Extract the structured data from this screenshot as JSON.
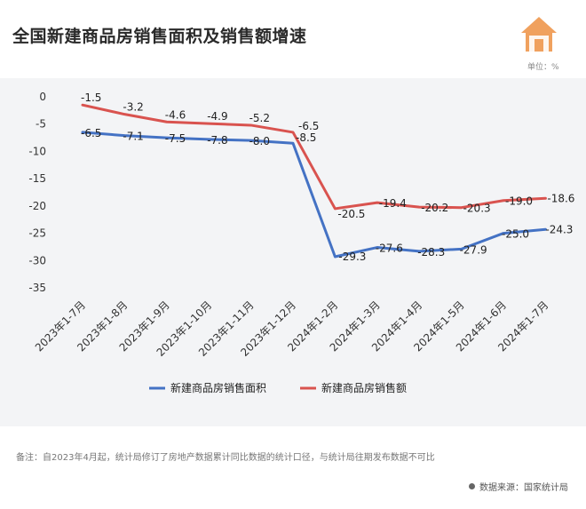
{
  "title": "全国新建商品房销售面积及销售额增速",
  "unit": "单位：%",
  "house_icon": "house-icon",
  "colors": {
    "area": "#4472c4",
    "sales": "#d9534f",
    "icon": "#f0a15e"
  },
  "note_label": "备注：",
  "note_text": "自2023年4月起，统计局修订了房地产数据累计同比数据的统计口径，与统计局往期发布数据不可比",
  "source": "数据来源：国家统计局",
  "chart_data": {
    "type": "line",
    "categories": [
      "2023年1-7月",
      "2023年1-8月",
      "2023年1-9月",
      "2023年1-10月",
      "2023年1-11月",
      "2023年1-12月",
      "2024年1-2月",
      "2024年1-3月",
      "2024年1-4月",
      "2024年1-5月",
      "2024年1-6月",
      "2024年1-7月"
    ],
    "series": [
      {
        "name": "新建商品房销售面积",
        "color": "#4472c4",
        "values": [
          -6.5,
          -7.1,
          -7.5,
          -7.8,
          -8.0,
          -8.5,
          -29.3,
          -27.6,
          -28.3,
          -27.9,
          -25.0,
          -24.3
        ]
      },
      {
        "name": "新建商品房销售额",
        "color": "#d9534f",
        "values": [
          -1.5,
          -3.2,
          -4.6,
          -4.9,
          -5.2,
          -6.5,
          -20.5,
          -19.4,
          -20.2,
          -20.3,
          -19.0,
          -18.6
        ]
      }
    ],
    "yticks": [
      0,
      -5,
      -10,
      -15,
      -20,
      -25,
      -30,
      -35
    ],
    "ylim": [
      -35,
      0
    ],
    "legend": "bottom",
    "grid": false
  }
}
